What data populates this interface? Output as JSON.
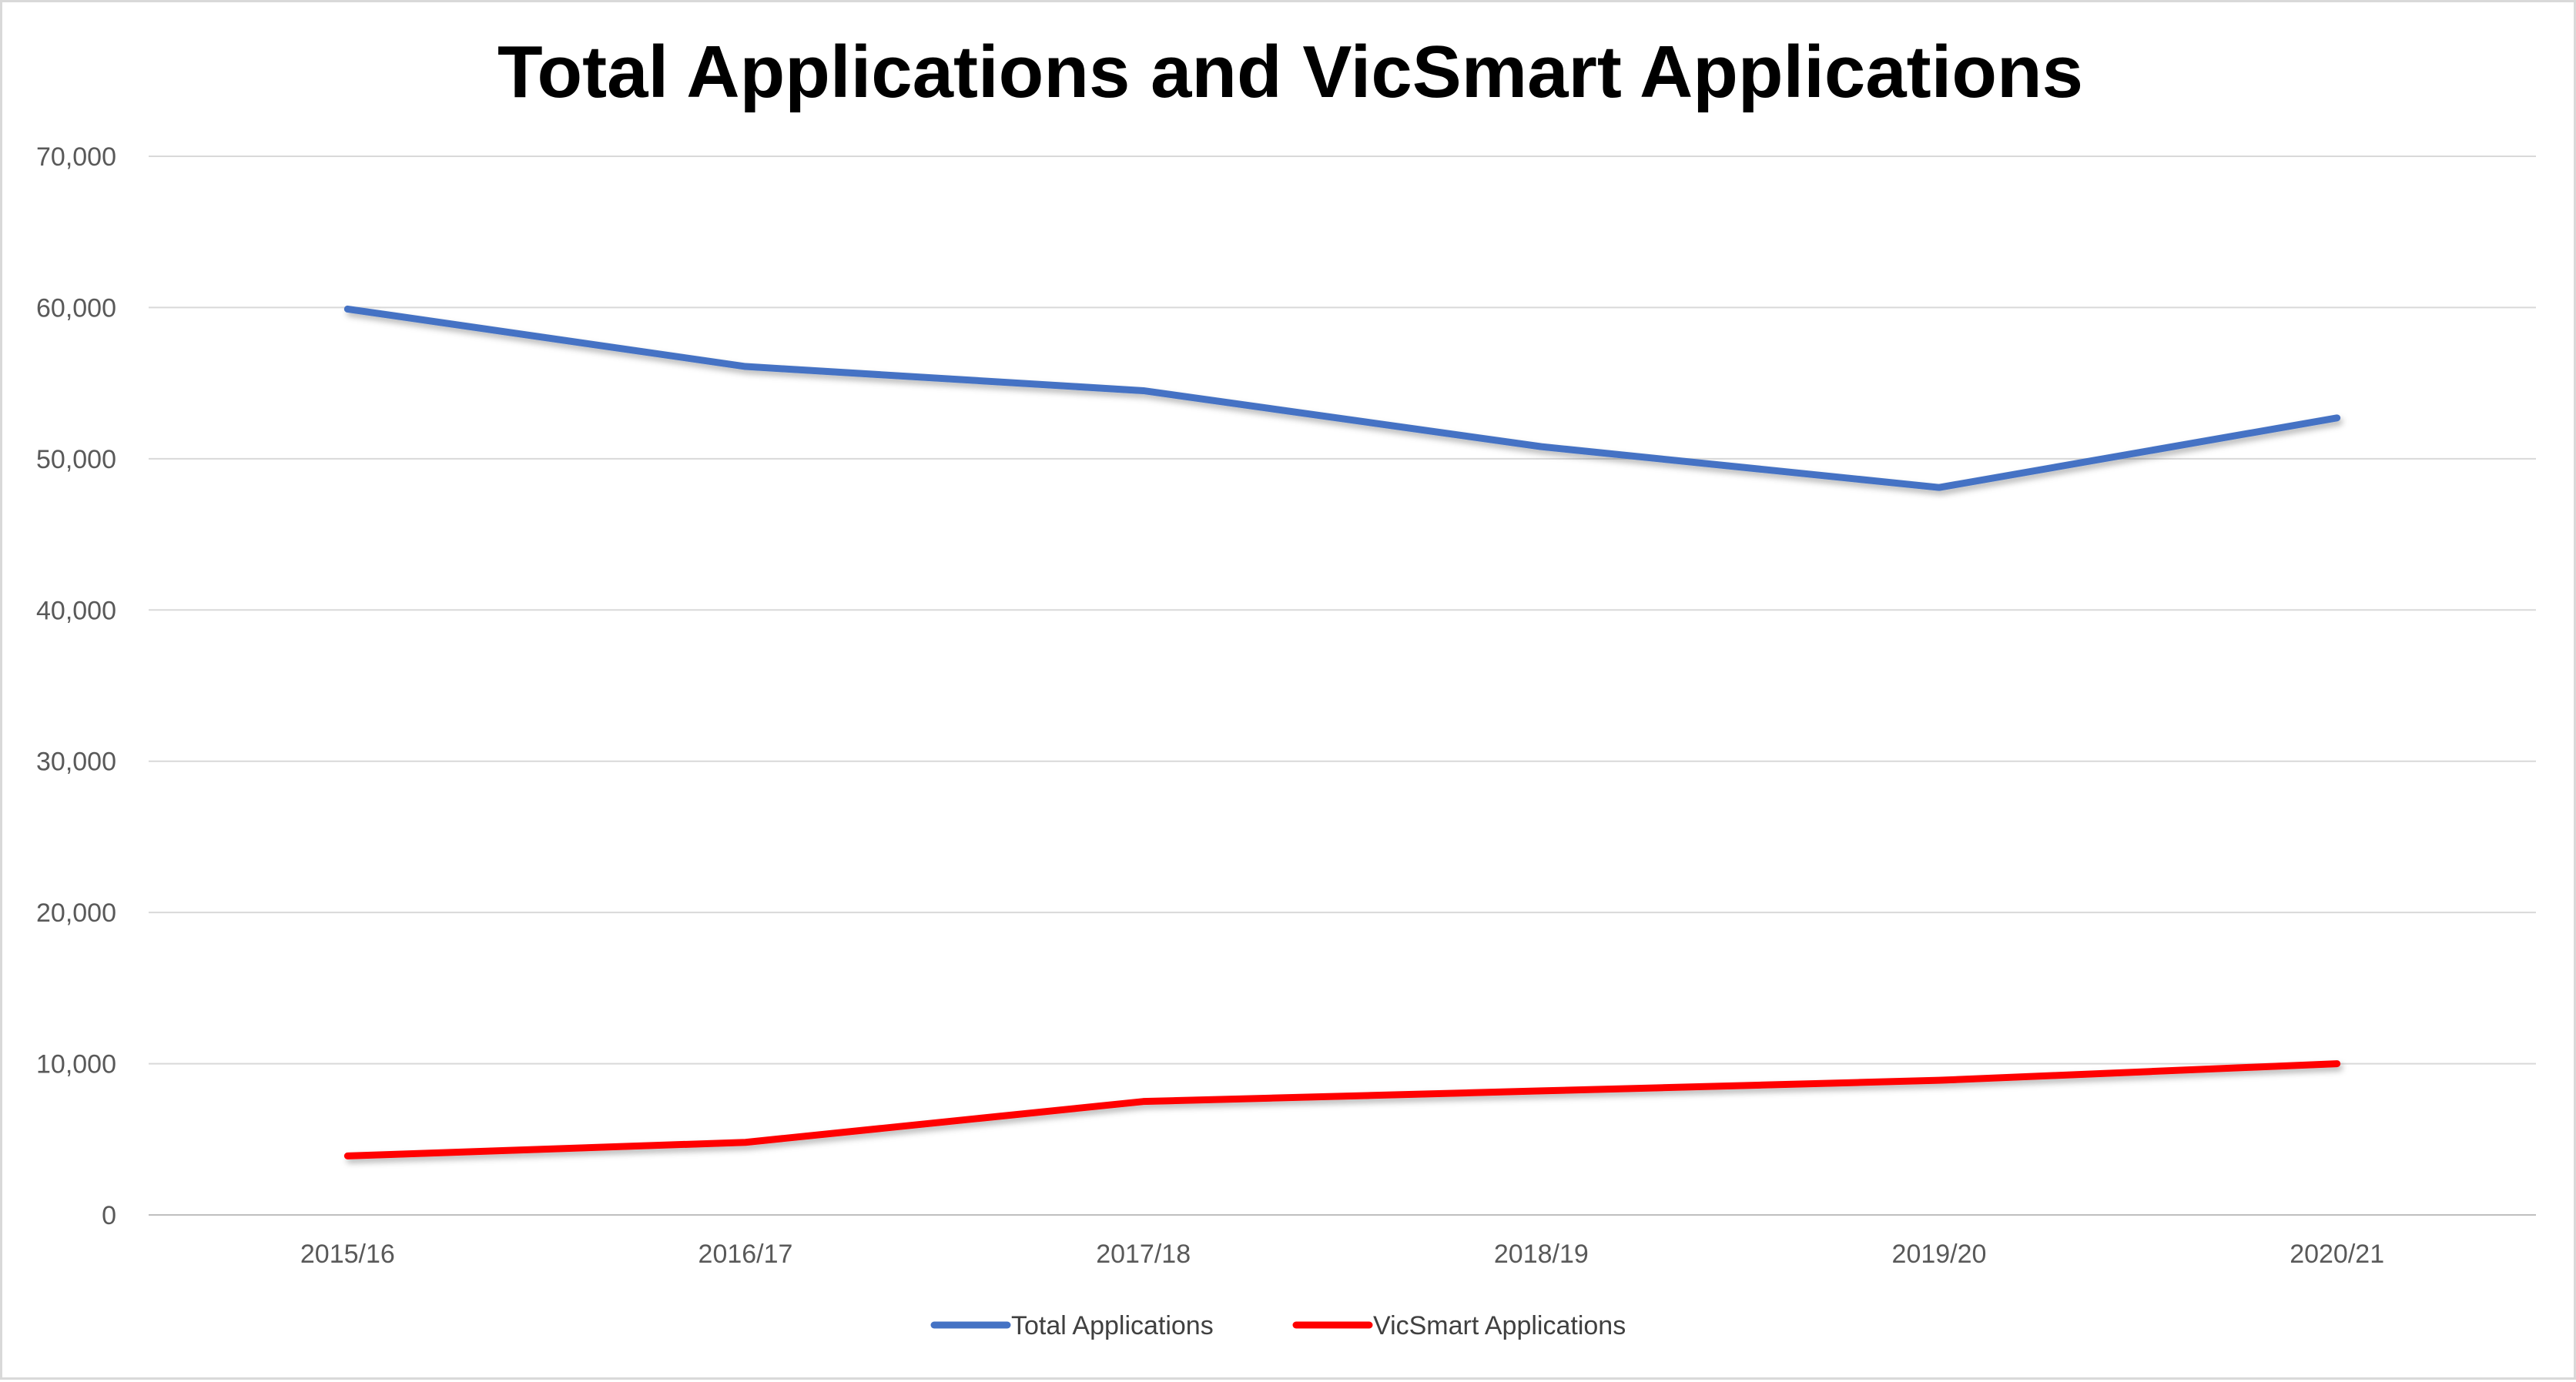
{
  "chart_data": {
    "type": "line",
    "title": "Total Applications and VicSmart Applications",
    "xlabel": "",
    "ylabel": "",
    "categories": [
      "2015/16",
      "2016/17",
      "2017/18",
      "2018/19",
      "2019/20",
      "2020/21"
    ],
    "ylim": [
      0,
      70000
    ],
    "yticks": [
      0,
      10000,
      20000,
      30000,
      40000,
      50000,
      60000,
      70000
    ],
    "ytick_labels": [
      "0",
      "10,000",
      "20,000",
      "30,000",
      "40,000",
      "50,000",
      "60,000",
      "70,000"
    ],
    "grid": true,
    "legend_position": "bottom",
    "series": [
      {
        "name": "Total Applications",
        "color": "#4472c4",
        "values": [
          59900,
          56100,
          54500,
          50800,
          48100,
          52700
        ]
      },
      {
        "name": "VicSmart Applications",
        "color": "#ff0000",
        "values": [
          3900,
          4800,
          7500,
          8200,
          8900,
          10000
        ]
      }
    ]
  }
}
